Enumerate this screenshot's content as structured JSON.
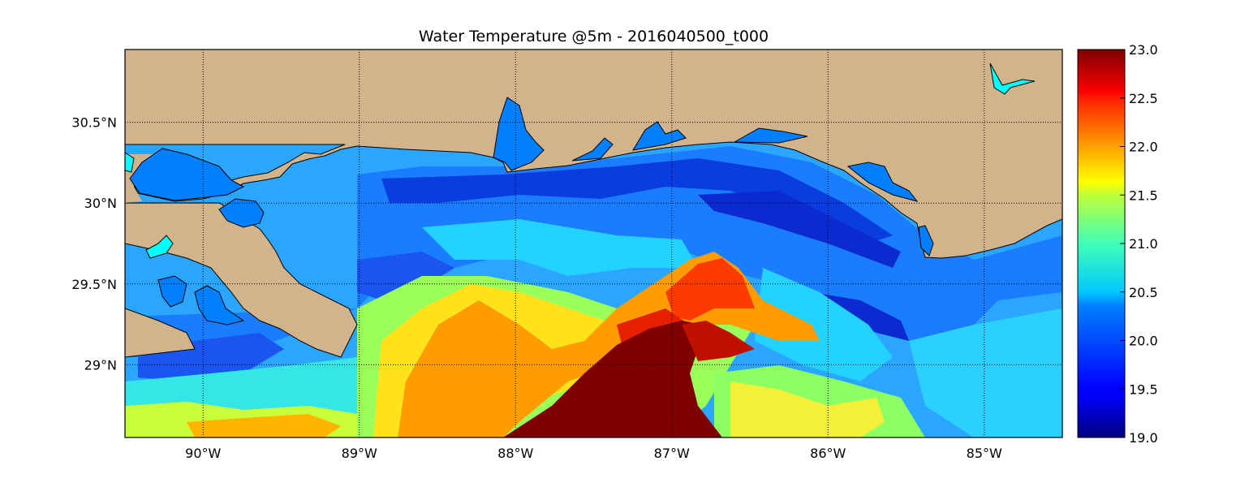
{
  "title": "Water Temperature @5m - 2016040500_t000",
  "map": {
    "lon_range": [
      -90.5,
      -84.5
    ],
    "lat_range": [
      28.55,
      30.95
    ],
    "lon_ticks": [
      {
        "value": -90,
        "label": "90°W"
      },
      {
        "value": -89,
        "label": "89°W"
      },
      {
        "value": -88,
        "label": "88°W"
      },
      {
        "value": -87,
        "label": "87°W"
      },
      {
        "value": -86,
        "label": "86°W"
      },
      {
        "value": -85,
        "label": "85°W"
      }
    ],
    "lat_ticks": [
      {
        "value": 30.5,
        "label": "30.5°N"
      },
      {
        "value": 30.0,
        "label": "30°N"
      },
      {
        "value": 29.5,
        "label": "29.5°N"
      },
      {
        "value": 29.0,
        "label": "29°N"
      }
    ],
    "grid": true,
    "land_color": "#d2b48c",
    "water_color": "#0080ff"
  },
  "colorbar": {
    "min": 19.0,
    "max": 23.0,
    "colormap": "jet",
    "ticks": [
      "19.0",
      "19.5",
      "20.0",
      "20.5",
      "21.0",
      "21.5",
      "22.0",
      "22.5",
      "23.0"
    ]
  }
}
